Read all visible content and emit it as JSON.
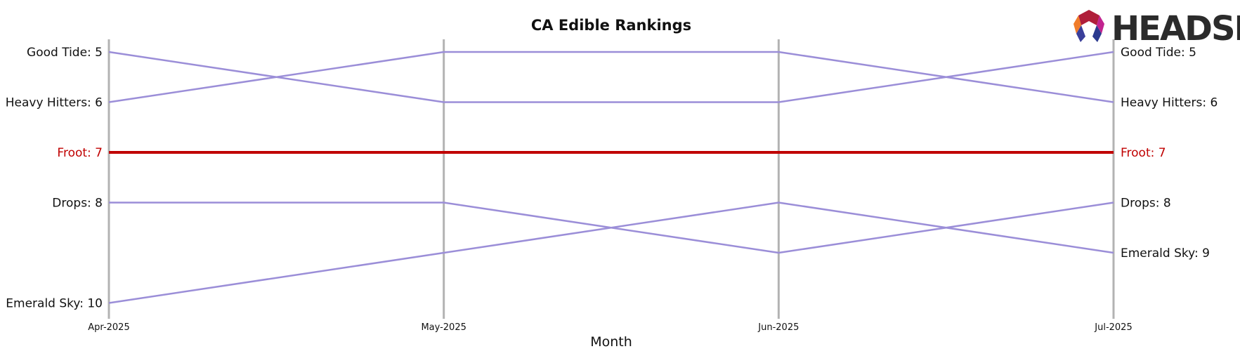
{
  "chart_data": {
    "type": "line",
    "title": "CA Edible Rankings",
    "xlabel": "Month",
    "ylabel": "",
    "x": [
      "Apr-2025",
      "May-2025",
      "Jun-2025",
      "Jul-2025"
    ],
    "ylim": [
      10,
      5
    ],
    "y_inverted": true,
    "grid": "vertical lines at each month",
    "series": [
      {
        "name": "Good Tide",
        "values": [
          5,
          6,
          6,
          5
        ],
        "color": "#9b8ed8",
        "highlight": false
      },
      {
        "name": "Heavy Hitters",
        "values": [
          6,
          5,
          5,
          6
        ],
        "color": "#9b8ed8",
        "highlight": false
      },
      {
        "name": "Froot",
        "values": [
          7,
          7,
          7,
          7
        ],
        "color": "#c00000",
        "highlight": true
      },
      {
        "name": "Drops",
        "values": [
          8,
          8,
          9,
          8
        ],
        "color": "#9b8ed8",
        "highlight": false
      },
      {
        "name": "Emerald Sky",
        "values": [
          10,
          9,
          8,
          9
        ],
        "color": "#9b8ed8",
        "highlight": false
      }
    ],
    "left_labels": [
      {
        "text": "Good Tide: 5",
        "rank": 5,
        "highlight": false
      },
      {
        "text": "Heavy Hitters: 6",
        "rank": 6,
        "highlight": false
      },
      {
        "text": "Froot: 7",
        "rank": 7,
        "highlight": true
      },
      {
        "text": "Drops: 8",
        "rank": 8,
        "highlight": false
      },
      {
        "text": "Emerald Sky: 10",
        "rank": 10,
        "highlight": false
      }
    ],
    "right_labels": [
      {
        "text": "Good Tide: 5",
        "rank": 5,
        "highlight": false
      },
      {
        "text": "Heavy Hitters: 6",
        "rank": 6,
        "highlight": false
      },
      {
        "text": "Froot: 7",
        "rank": 7,
        "highlight": true
      },
      {
        "text": "Drops: 8",
        "rank": 8,
        "highlight": false
      },
      {
        "text": "Emerald Sky: 9",
        "rank": 9,
        "highlight": false
      }
    ]
  },
  "logo": {
    "text": "HEADSET"
  },
  "colors": {
    "accent": "#c00000",
    "line": "#9b8ed8",
    "grid": "#b3b3b3",
    "text": "#111111"
  }
}
